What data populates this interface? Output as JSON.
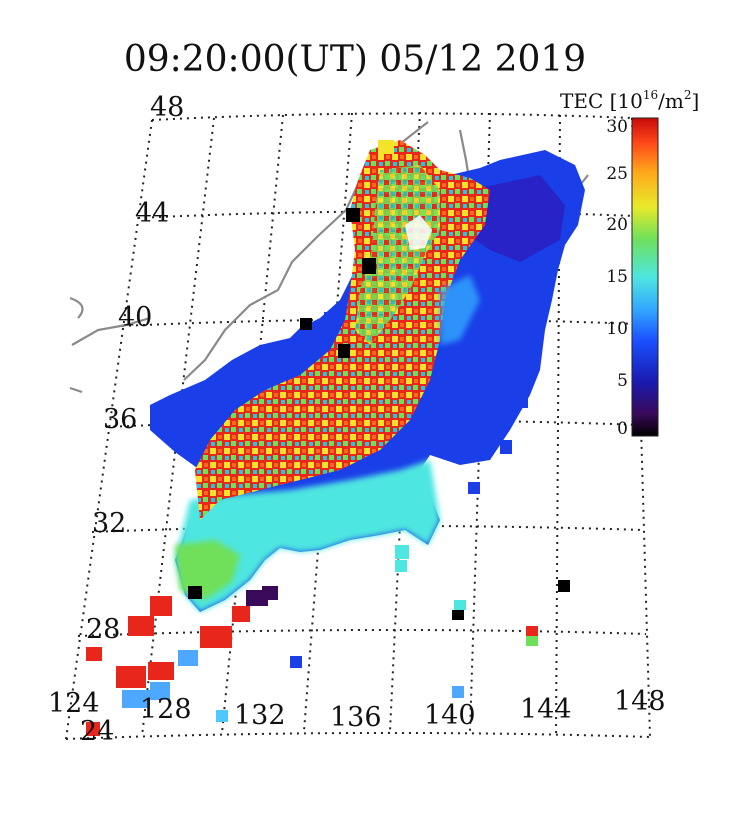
{
  "title": "09:20:00(UT)  05/12 2019",
  "colorbar": {
    "label_main": "TEC [10",
    "label_exp": "16",
    "label_unit": "/m",
    "label_exp2": "2",
    "label_end": "]",
    "min": 0,
    "max": 30,
    "ticks": [
      "30",
      "25",
      "20",
      "15",
      "10",
      "5",
      "0"
    ]
  },
  "latitude_labels": [
    "48",
    "44",
    "40",
    "36",
    "32",
    "28",
    "24"
  ],
  "longitude_labels": [
    "124",
    "128",
    "132",
    "136",
    "140",
    "144",
    "148"
  ],
  "colors": {
    "background": "#ffffff",
    "high_tec": "#e8261c",
    "mid_tec": "#6fe05a",
    "low_tec": "#1a3fe8",
    "coast": "#8a8a8a"
  }
}
